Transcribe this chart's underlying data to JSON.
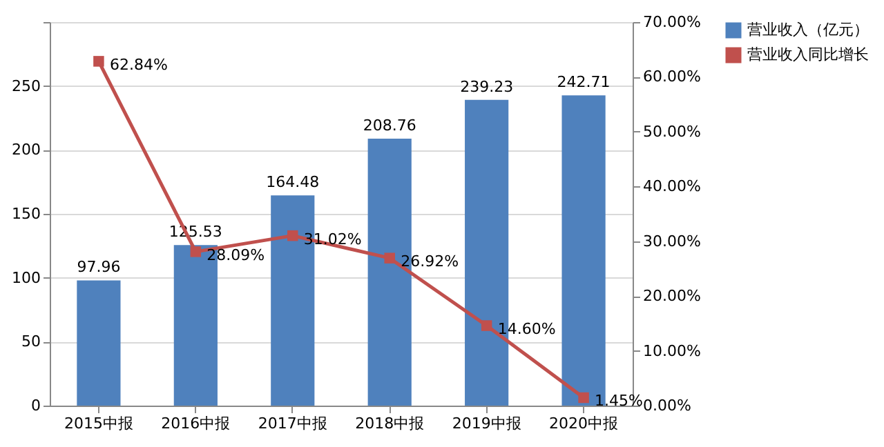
{
  "chart_data": {
    "type": "bar",
    "categories": [
      "2015中报",
      "2016中报",
      "2017中报",
      "2018中报",
      "2019中报",
      "2020中报"
    ],
    "series": [
      {
        "name": "营业收入（亿元）",
        "color": "#4f81bd",
        "values": [
          97.96,
          125.53,
          164.48,
          208.76,
          239.23,
          242.71
        ],
        "value_labels": [
          "97.96",
          "125.53",
          "164.48",
          "208.76",
          "239.23",
          "242.71"
        ]
      },
      {
        "name": "营业收入同比增长",
        "type": "line",
        "axis": "y2",
        "color": "#c0504d",
        "marker": "square",
        "values": [
          62.84,
          28.09,
          31.02,
          26.92,
          14.6,
          1.45
        ],
        "value_labels": [
          "62.84%",
          "28.09%",
          "31.02%",
          "26.92%",
          "14.60%",
          "1.45%"
        ]
      }
    ],
    "ylim": [
      0,
      300
    ],
    "yticks": [
      0,
      50,
      100,
      150,
      200,
      250,
      {
        "value": 300,
        "label": null
      }
    ],
    "y2lim": [
      0,
      70
    ],
    "y2ticks": [
      {
        "value": 0,
        "label": "0.00%"
      },
      {
        "value": 10,
        "label": "10.00%"
      },
      {
        "value": 20,
        "label": "20.00%"
      },
      {
        "value": 30,
        "label": "30.00%"
      },
      {
        "value": 40,
        "label": "40.00%"
      },
      {
        "value": 50,
        "label": "50.00%"
      },
      {
        "value": 60,
        "label": "60.00%"
      },
      {
        "value": 70,
        "label": "70.00%"
      }
    ],
    "grid": "y",
    "legend": "right"
  }
}
